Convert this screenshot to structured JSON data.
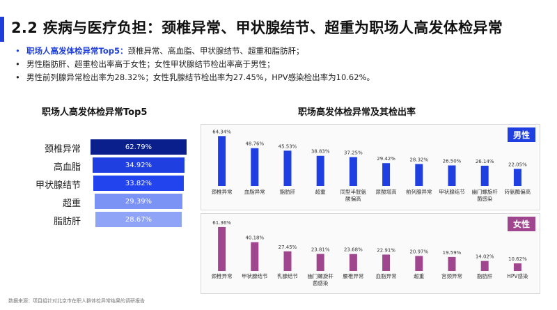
{
  "title": "2.2 疾病与医疗负担：颈椎异常、甲状腺结节、超重为职场人高发体检异常",
  "bullets": [
    {
      "highlight": "职场人高发体检异常Top5：",
      "text": "颈椎异常、高血脂、甲状腺结节、超重和脂肪肝；"
    },
    {
      "highlight": "",
      "text": "男性脂肪肝、超重检出率高于女性；女性甲状腺结节检出率高于男性；"
    },
    {
      "highlight": "",
      "text": "男性前列腺异常检出率为28.32%；女性乳腺结节检出率为27.45%，HPV感染检出率为10.62%。"
    }
  ],
  "funnel": {
    "title": "职场人高发体检异常Top5",
    "items": [
      {
        "label": "颈椎异常",
        "value": "62.79%",
        "color": "#0a1e8c"
      },
      {
        "label": "高血脂",
        "value": "34.92%",
        "color": "#1f3fe0"
      },
      {
        "label": "甲状腺结节",
        "value": "33.82%",
        "color": "#2244ee"
      },
      {
        "label": "超重",
        "value": "29.39%",
        "color": "#7b93f5"
      },
      {
        "label": "脂肪肝",
        "value": "28.67%",
        "color": "#8fa3f7"
      }
    ]
  },
  "right_title": "职场高发体检异常及其检出率",
  "male_tag": "男性",
  "female_tag": "女性",
  "source": "数据来源：项目组针对北京市在职人群体检异常结果的调研报告",
  "colors": {
    "male": "#1f3fe0",
    "female": "#a0468e",
    "male_tag": "#1f3fe0",
    "female_tag": "#a0468e"
  },
  "chart_data": [
    {
      "type": "bar",
      "series": [
        {
          "name": "男性",
          "values": [
            64.34,
            48.76,
            45.53,
            38.83,
            37.25,
            29.42,
            28.32,
            26.5,
            26.14,
            22.05
          ]
        }
      ],
      "categories": [
        "颈椎异常",
        "血脂异常",
        "脂肪肝",
        "超重",
        "同型半胱氨酸偏高",
        "尿酸增高",
        "前列腺异常",
        "甲状腺结节",
        "幽门螺旋杆菌感染",
        "转氨酶偏高"
      ],
      "labels": [
        "64.34%",
        "48.76%",
        "45.53%",
        "38.83%",
        "37.25%",
        "29.42%",
        "28.32%",
        "26.50%",
        "26.14%",
        "22.05%"
      ],
      "tick_lines": [
        [
          "颈椎异常"
        ],
        [
          "血脂异常"
        ],
        [
          "脂肪肝"
        ],
        [
          "超重"
        ],
        [
          "同型半胱氨",
          "酸偏高"
        ],
        [
          "尿酸增高"
        ],
        [
          "前列腺异常"
        ],
        [
          "甲状腺结节"
        ],
        [
          "幽门螺旋杆",
          "菌感染"
        ],
        [
          "转氨酶偏高"
        ]
      ],
      "ylim": [
        0,
        70
      ]
    },
    {
      "type": "bar",
      "series": [
        {
          "name": "女性",
          "values": [
            61.36,
            40.18,
            27.45,
            23.81,
            23.68,
            22.91,
            20.97,
            19.59,
            14.02,
            10.62
          ]
        }
      ],
      "categories": [
        "颈椎异常",
        "甲状腺结节",
        "乳腺结节",
        "幽门螺旋杆菌感染",
        "腰椎异常",
        "血脂异常",
        "超重",
        "宫颈异常",
        "脂肪肝",
        "HPV感染"
      ],
      "labels": [
        "61.36%",
        "40.18%",
        "27.45%",
        "23.81%",
        "23.68%",
        "22.91%",
        "20.97%",
        "19.59%",
        "14.02%",
        "10.62%"
      ],
      "tick_lines": [
        [
          "颈椎异常"
        ],
        [
          "甲状腺结节"
        ],
        [
          "乳腺结节"
        ],
        [
          "幽门螺旋杆",
          "菌感染"
        ],
        [
          "腰椎异常"
        ],
        [
          "血脂异常"
        ],
        [
          "超重"
        ],
        [
          "宫颈异常"
        ],
        [
          "脂肪肝"
        ],
        [
          "HPV感染"
        ]
      ],
      "ylim": [
        0,
        70
      ]
    }
  ]
}
